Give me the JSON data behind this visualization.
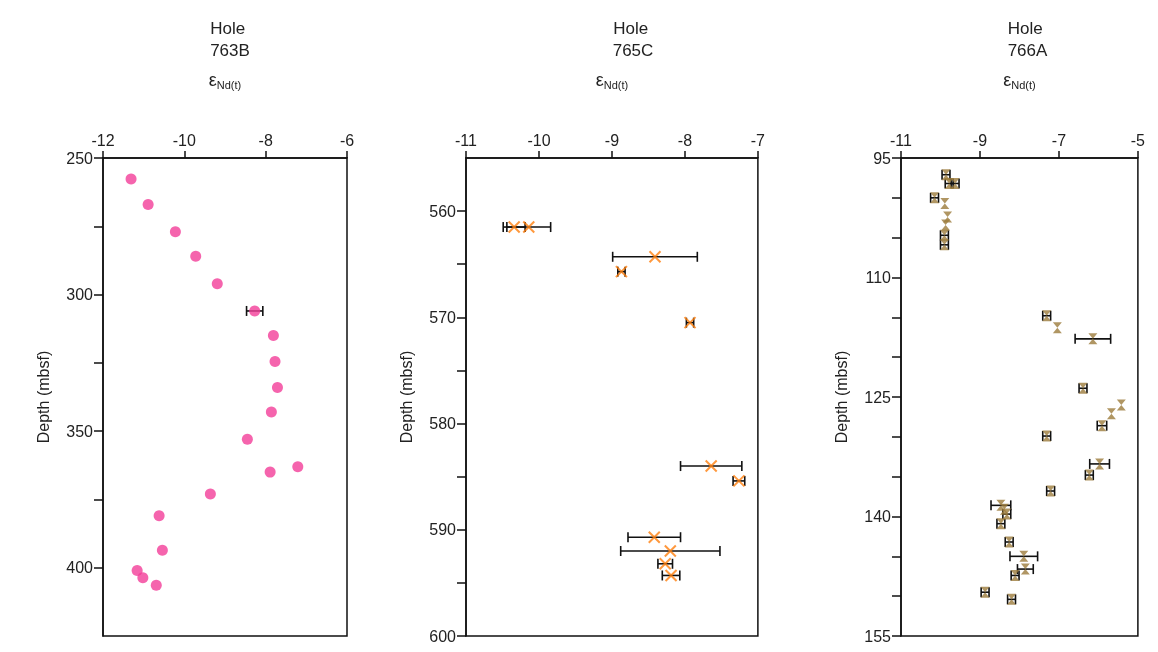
{
  "chart_data": [
    {
      "type": "scatter",
      "title": "Hole 763B",
      "xlabel": "ε$_{Nd(t)}$",
      "ylabel": "Depth (mbsf)",
      "marker": "circle",
      "xlim": [
        -12,
        -6
      ],
      "xticks": [
        -12,
        -10,
        -8,
        -6
      ],
      "ylim": [
        425,
        250
      ],
      "yticks": [
        250,
        {
          "value": 275,
          "label": null
        },
        300,
        {
          "value": 325,
          "label": null
        },
        350,
        {
          "value": 375,
          "label": null
        },
        400
      ],
      "series": [
        {
          "color": "#f23d99",
          "x": [
            -11.31,
            -10.89,
            -10.22,
            -9.72,
            -9.19,
            -8.27,
            -7.81,
            -7.77,
            -7.71,
            -7.86,
            -8.45,
            -7.89,
            -7.21,
            -9.36,
            -10.62,
            -10.54,
            -11.16,
            -11.02,
            -10.69
          ],
          "values": [
            257.7,
            267,
            277,
            286,
            296,
            306,
            315,
            324.5,
            334,
            343,
            353,
            365,
            363,
            373,
            381,
            393.6,
            401,
            403.7,
            406.4
          ],
          "xerrors": [
            null,
            null,
            null,
            null,
            null,
            0.2,
            null,
            null,
            null,
            null,
            null,
            null,
            null,
            null,
            null,
            null,
            null,
            null,
            null
          ]
        }
      ]
    },
    {
      "type": "scatter",
      "title": "Hole 765C",
      "xlabel": "ε$_{Nd(t)}$",
      "ylabel": "Depth (mbsf)",
      "marker": "cross",
      "xlim": [
        -11,
        -7
      ],
      "xticks": [
        -11,
        -10,
        -9,
        -8,
        -7
      ],
      "ylim": [
        600,
        555
      ],
      "yticks": [
        560,
        {
          "value": 565,
          "label": null
        },
        570,
        {
          "value": 575,
          "label": null
        },
        580,
        {
          "value": 585,
          "label": null
        },
        590,
        {
          "value": 595,
          "label": null
        },
        600
      ],
      "series": [
        {
          "color": "#ff7f0e",
          "x": [
            -10.34,
            -10.14,
            -8.41,
            -8.87,
            -7.93,
            -7.64,
            -7.26,
            -8.42,
            -8.2,
            -8.27,
            -8.19
          ],
          "values": [
            561.5,
            561.5,
            564.3,
            565.7,
            570.5,
            584.0,
            585.4,
            590.7,
            592.0,
            593.2,
            594.3
          ],
          "xerrors": [
            0.15,
            0.3,
            0.58,
            0.05,
            0.05,
            0.42,
            0.08,
            0.36,
            0.68,
            0.1,
            0.12
          ]
        }
      ]
    },
    {
      "type": "scatter",
      "title": "Hole 766A",
      "xlabel": "ε$_{Nd(t)}$",
      "ylabel": "Depth (mbsf)",
      "marker": "triangle",
      "xlim": [
        -11,
        -5
      ],
      "xticks": [
        -11,
        -9,
        -7,
        -5
      ],
      "ylim": [
        155,
        95
      ],
      "yticks": [
        95,
        {
          "value": 100,
          "label": null
        },
        {
          "value": 105,
          "label": null
        },
        110,
        {
          "value": 115,
          "label": null
        },
        {
          "value": 120,
          "label": null
        },
        125,
        {
          "value": 130,
          "label": null
        },
        {
          "value": 135,
          "label": null
        },
        140,
        {
          "value": 145,
          "label": null
        },
        {
          "value": 150,
          "label": null
        },
        155
      ],
      "series": [
        {
          "color": "#9c7c3c",
          "x": [
            -9.86,
            -9.78,
            -9.63,
            -10.15,
            -9.89,
            -9.82,
            -9.87,
            -9.9,
            -9.9,
            -7.31,
            -7.04,
            -6.14,
            -6.39,
            -5.42,
            -5.67,
            -5.91,
            -7.31,
            -5.97,
            -6.23,
            -7.21,
            -8.47,
            -8.38,
            -8.32,
            -8.47,
            -8.26,
            -7.89,
            -7.85,
            -8.11,
            -8.87,
            -8.2
          ],
          "values": [
            97.1,
            98.2,
            98.2,
            100.0,
            100.7,
            102.4,
            103.4,
            104.7,
            105.9,
            114.8,
            116.3,
            117.7,
            123.9,
            126.0,
            127.1,
            128.6,
            129.9,
            133.4,
            134.8,
            136.8,
            138.6,
            139.1,
            139.7,
            140.9,
            143.2,
            145.0,
            146.6,
            147.4,
            149.5,
            150.4
          ],
          "xerrors": [
            0.1,
            0.1,
            0.1,
            0.1,
            null,
            null,
            null,
            0.1,
            0.1,
            0.1,
            null,
            0.45,
            0.1,
            null,
            null,
            0.12,
            0.1,
            0.25,
            0.1,
            0.1,
            0.25,
            null,
            0.1,
            0.1,
            0.1,
            0.35,
            0.2,
            0.1,
            0.1,
            0.1
          ]
        }
      ]
    }
  ]
}
